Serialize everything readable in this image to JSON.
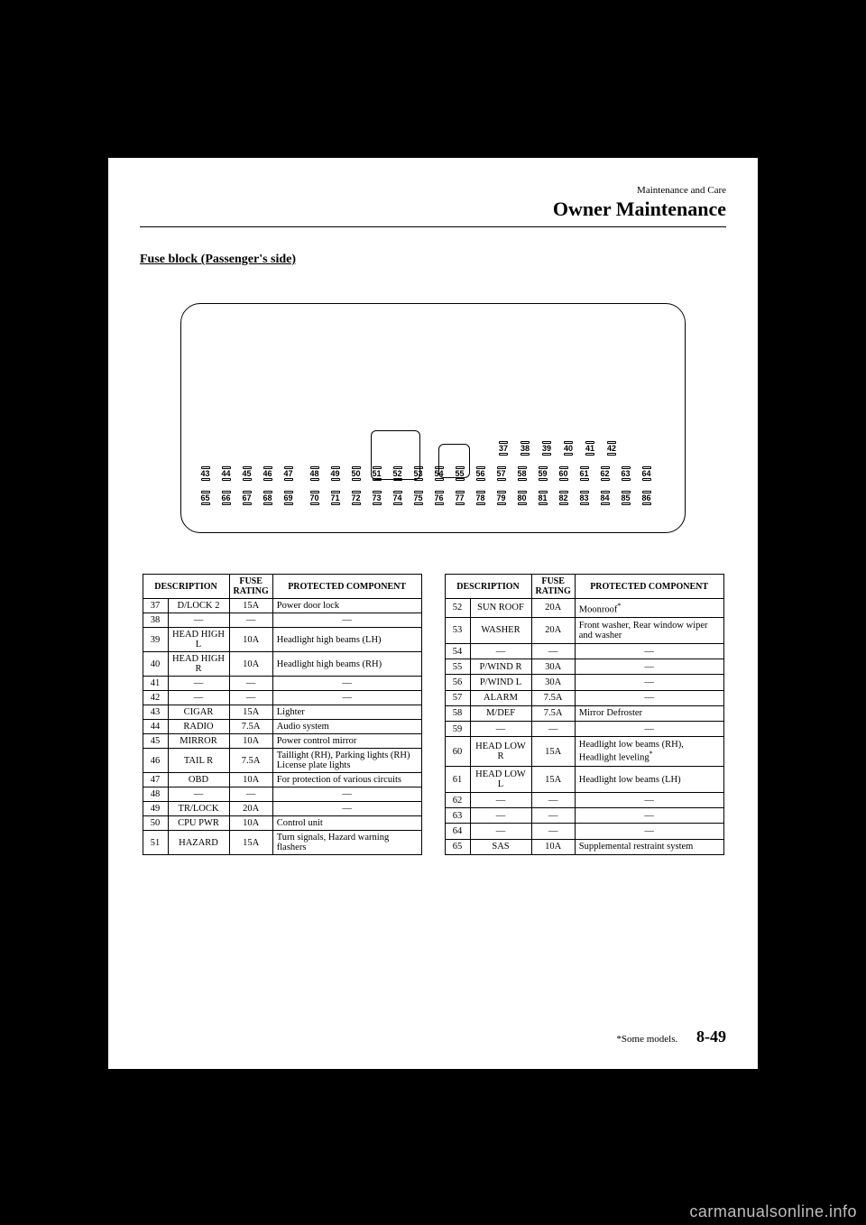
{
  "header": {
    "small": "Maintenance and Care",
    "big": "Owner Maintenance"
  },
  "section_title": "Fuse block (Passenger's side)",
  "diagram": {
    "box_border_radius": 22,
    "top_row": [
      "37",
      "38",
      "39",
      "40",
      "41",
      "42"
    ],
    "mid_row_left": [
      "43",
      "44",
      "45",
      "46",
      "47"
    ],
    "mid_row_right": [
      "48",
      "49",
      "50",
      "51",
      "52",
      "53",
      "54",
      "55",
      "56",
      "57",
      "58",
      "59",
      "60",
      "61",
      "62",
      "63",
      "64"
    ],
    "bot_row_left": [
      "65",
      "66",
      "67",
      "68",
      "69"
    ],
    "bot_row_right": [
      "70",
      "71",
      "72",
      "73",
      "74",
      "75",
      "76",
      "77",
      "78",
      "79",
      "80",
      "81",
      "82",
      "83",
      "84",
      "85",
      "86"
    ]
  },
  "table_headers": {
    "desc": "DESCRIPTION",
    "rating": "FUSE RATING",
    "comp": "PROTECTED COMPONENT"
  },
  "table_left": [
    {
      "n": "37",
      "d": "D/LOCK 2",
      "r": "15A",
      "c": "Power door lock"
    },
    {
      "n": "38",
      "d": "—",
      "r": "—",
      "c": "—",
      "center": true
    },
    {
      "n": "39",
      "d": "HEAD HIGH L",
      "r": "10A",
      "c": "Headlight high beams (LH)"
    },
    {
      "n": "40",
      "d": "HEAD HIGH R",
      "r": "10A",
      "c": "Headlight high beams (RH)"
    },
    {
      "n": "41",
      "d": "—",
      "r": "—",
      "c": "—",
      "center": true
    },
    {
      "n": "42",
      "d": "—",
      "r": "—",
      "c": "—",
      "center": true
    },
    {
      "n": "43",
      "d": "CIGAR",
      "r": "15A",
      "c": "Lighter"
    },
    {
      "n": "44",
      "d": "RADIO",
      "r": "7.5A",
      "c": "Audio system"
    },
    {
      "n": "45",
      "d": "MIRROR",
      "r": "10A",
      "c": "Power control mirror"
    },
    {
      "n": "46",
      "d": "TAIL R",
      "r": "7.5A",
      "c": "Taillight (RH), Parking lights (RH) License plate lights"
    },
    {
      "n": "47",
      "d": "OBD",
      "r": "10A",
      "c": "For protection of various circuits"
    },
    {
      "n": "48",
      "d": "—",
      "r": "—",
      "c": "—",
      "center": true
    },
    {
      "n": "49",
      "d": "TR/LOCK",
      "r": "20A",
      "c": "—",
      "center": true
    },
    {
      "n": "50",
      "d": "CPU PWR",
      "r": "10A",
      "c": "Control unit"
    },
    {
      "n": "51",
      "d": "HAZARD",
      "r": "15A",
      "c": "Turn signals, Hazard warning flashers"
    }
  ],
  "table_right": [
    {
      "n": "52",
      "d": "SUN ROOF",
      "r": "20A",
      "c": "Moonroof",
      "ast": true
    },
    {
      "n": "53",
      "d": "WASHER",
      "r": "20A",
      "c": "Front washer, Rear window wiper and washer"
    },
    {
      "n": "54",
      "d": "—",
      "r": "—",
      "c": "—",
      "center": true
    },
    {
      "n": "55",
      "d": "P/WIND R",
      "r": "30A",
      "c": "—",
      "center": true
    },
    {
      "n": "56",
      "d": "P/WIND L",
      "r": "30A",
      "c": "—",
      "center": true
    },
    {
      "n": "57",
      "d": "ALARM",
      "r": "7.5A",
      "c": "—",
      "center": true
    },
    {
      "n": "58",
      "d": "M/DEF",
      "r": "7.5A",
      "c": "Mirror Defroster"
    },
    {
      "n": "59",
      "d": "—",
      "r": "—",
      "c": "—",
      "center": true
    },
    {
      "n": "60",
      "d": "HEAD LOW R",
      "r": "15A",
      "c": "Headlight low beams (RH), Headlight leveling",
      "ast": true
    },
    {
      "n": "61",
      "d": "HEAD LOW L",
      "r": "15A",
      "c": "Headlight low beams (LH)"
    },
    {
      "n": "62",
      "d": "—",
      "r": "—",
      "c": "—",
      "center": true
    },
    {
      "n": "63",
      "d": "—",
      "r": "—",
      "c": "—",
      "center": true
    },
    {
      "n": "64",
      "d": "—",
      "r": "—",
      "c": "—",
      "center": true
    },
    {
      "n": "65",
      "d": "SAS",
      "r": "10A",
      "c": "Supplemental restraint system"
    }
  ],
  "footer": {
    "note": "*Some models.",
    "page": "8-49"
  },
  "watermark": "carmanualsonline.info",
  "colors": {
    "page_bg": "#ffffff",
    "outer_bg": "#000000",
    "text": "#000000",
    "watermark": "#bfbfbf"
  }
}
